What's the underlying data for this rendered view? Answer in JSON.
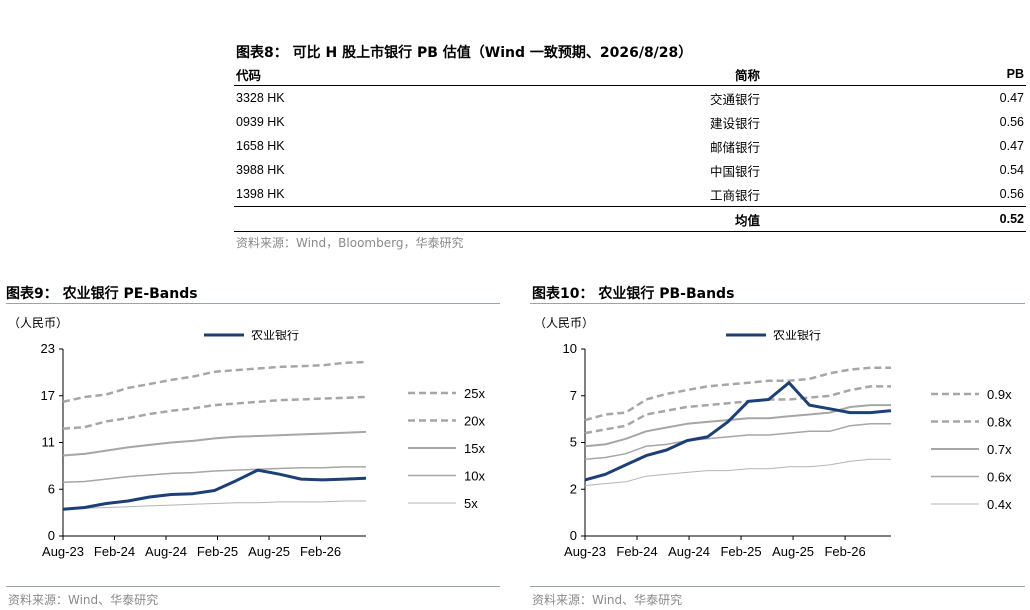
{
  "table": {
    "title": "图表8：  可比 H 股上市银行 PB 估值（Wind 一致预期、2026/8/28）",
    "headers": [
      "代码",
      "简称",
      "PB"
    ],
    "rows": [
      [
        "3328 HK",
        "交通银行",
        "0.47"
      ],
      [
        "0939 HK",
        "建设银行",
        "0.56"
      ],
      [
        "1658 HK",
        "邮储银行",
        "0.47"
      ],
      [
        "3988 HK",
        "中国银行",
        "0.54"
      ],
      [
        "1398 HK",
        "工商银行",
        "0.56"
      ]
    ],
    "avg_label": "均值",
    "avg_value": "0.52",
    "source": "资料来源：Wind，Bloomberg，华泰研究"
  },
  "chart_left": {
    "title": "图表9：  农业银行 PE-Bands",
    "unit": "（人民币）",
    "source": "资料来源：Wind、华泰研究"
  },
  "chart_right": {
    "title": "图表10：  农业银行 PB-Bands",
    "unit": "（人民币）",
    "source": "资料来源：Wind、华泰研究"
  },
  "chart_data": [
    {
      "type": "line",
      "title": "农业银行 PE-Bands",
      "ylabel": "（人民币）",
      "ylim": [
        0,
        23
      ],
      "yticks": [
        "0",
        "6",
        "11",
        "17",
        "23"
      ],
      "x_tick_labels": [
        "Aug-23",
        "Feb-24",
        "Aug-24",
        "Feb-25",
        "Aug-25",
        "Feb-26"
      ],
      "x": [
        "Aug-23",
        "Nov-23",
        "Feb-24",
        "May-24",
        "Aug-24",
        "Nov-24",
        "Feb-25",
        "May-25",
        "Aug-25",
        "Sep-25",
        "Oct-25",
        "Nov-25",
        "Feb-26",
        "May-26",
        "Aug-26"
      ],
      "legend_position": "right",
      "series": [
        {
          "name": "农业银行",
          "color": "#1c3f76",
          "dash": "solid",
          "width": 3,
          "values": [
            3.3,
            3.5,
            4.0,
            4.3,
            4.8,
            5.1,
            5.2,
            5.6,
            6.8,
            8.1,
            7.6,
            7.0,
            6.9,
            7.0,
            7.1
          ]
        },
        {
          "name": "25x",
          "color": "#a6a6a6",
          "dash": "dashed",
          "width": 2.5,
          "values": [
            16.5,
            17.1,
            17.4,
            18.2,
            18.7,
            19.2,
            19.6,
            20.2,
            20.4,
            20.6,
            20.8,
            20.9,
            21.0,
            21.3,
            21.4
          ]
        },
        {
          "name": "20x",
          "color": "#a6a6a6",
          "dash": "dashed",
          "width": 2.5,
          "values": [
            13.2,
            13.4,
            14.1,
            14.5,
            15.0,
            15.4,
            15.7,
            16.1,
            16.3,
            16.5,
            16.7,
            16.8,
            16.9,
            17.0,
            17.1
          ]
        },
        {
          "name": "15x",
          "color": "#a6a6a6",
          "dash": "solid",
          "width": 2,
          "values": [
            9.9,
            10.1,
            10.5,
            10.9,
            11.2,
            11.5,
            11.7,
            12.0,
            12.2,
            12.3,
            12.4,
            12.5,
            12.6,
            12.7,
            12.8
          ]
        },
        {
          "name": "10x",
          "color": "#a6a6a6",
          "dash": "solid",
          "width": 1.5,
          "values": [
            6.6,
            6.7,
            7.0,
            7.3,
            7.5,
            7.7,
            7.8,
            8.0,
            8.1,
            8.2,
            8.3,
            8.4,
            8.4,
            8.5,
            8.5
          ]
        },
        {
          "name": "5x",
          "color": "#b4b4b4",
          "dash": "solid",
          "width": 1,
          "values": [
            3.3,
            3.4,
            3.5,
            3.6,
            3.7,
            3.8,
            3.9,
            4.0,
            4.1,
            4.1,
            4.2,
            4.2,
            4.2,
            4.3,
            4.3
          ]
        }
      ]
    },
    {
      "type": "line",
      "title": "农业银行 PB-Bands",
      "ylabel": "（人民币）",
      "ylim": [
        0,
        10
      ],
      "yticks": [
        "0",
        "2",
        "5",
        "7",
        "10"
      ],
      "x_tick_labels": [
        "Aug-23",
        "Feb-24",
        "Aug-24",
        "Feb-25",
        "Aug-25",
        "Feb-26"
      ],
      "x": [
        "Aug-23",
        "Nov-23",
        "Feb-24",
        "May-24",
        "Aug-24",
        "Nov-24",
        "Feb-25",
        "May-25",
        "Jul-25",
        "Aug-25",
        "Sep-25",
        "Oct-25",
        "Nov-25",
        "Feb-26",
        "May-26",
        "Aug-26"
      ],
      "legend_position": "right",
      "series": [
        {
          "name": "农业银行",
          "color": "#1c3f76",
          "dash": "solid",
          "width": 3,
          "values": [
            3.0,
            3.3,
            3.8,
            4.3,
            4.6,
            5.1,
            5.3,
            6.1,
            7.2,
            7.3,
            8.2,
            7.0,
            6.8,
            6.6,
            6.6,
            6.7
          ]
        },
        {
          "name": "0.9x",
          "color": "#a6a6a6",
          "dash": "dashed",
          "width": 2.5,
          "values": [
            6.2,
            6.5,
            6.6,
            7.3,
            7.6,
            7.8,
            8.0,
            8.1,
            8.2,
            8.3,
            8.3,
            8.4,
            8.7,
            8.9,
            9.0,
            9.0
          ]
        },
        {
          "name": "0.8x",
          "color": "#a6a6a6",
          "dash": "dashed",
          "width": 2.5,
          "values": [
            5.5,
            5.7,
            5.9,
            6.5,
            6.7,
            6.9,
            7.0,
            7.1,
            7.2,
            7.3,
            7.3,
            7.4,
            7.5,
            7.8,
            8.0,
            8.0
          ]
        },
        {
          "name": "0.7x",
          "color": "#a6a6a6",
          "dash": "solid",
          "width": 2,
          "values": [
            4.8,
            4.9,
            5.2,
            5.6,
            5.8,
            6.0,
            6.1,
            6.2,
            6.3,
            6.3,
            6.4,
            6.5,
            6.6,
            6.9,
            7.0,
            7.0
          ]
        },
        {
          "name": "0.6x",
          "color": "#a6a6a6",
          "dash": "solid",
          "width": 1.5,
          "values": [
            4.1,
            4.2,
            4.4,
            4.8,
            4.9,
            5.1,
            5.2,
            5.3,
            5.4,
            5.4,
            5.5,
            5.6,
            5.6,
            5.9,
            6.0,
            6.0
          ]
        },
        {
          "name": "0.4x",
          "color": "#b4b4b4",
          "dash": "solid",
          "width": 1,
          "values": [
            2.7,
            2.8,
            2.9,
            3.2,
            3.3,
            3.4,
            3.5,
            3.5,
            3.6,
            3.6,
            3.7,
            3.7,
            3.8,
            4.0,
            4.1,
            4.1
          ]
        }
      ]
    }
  ]
}
